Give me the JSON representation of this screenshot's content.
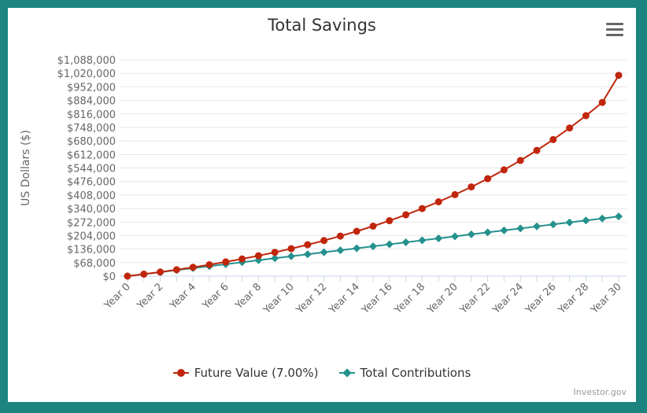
{
  "chart_data": {
    "type": "line",
    "title": "Total Savings",
    "ylabel": "US Dollars ($)",
    "xlabel": "",
    "ylim": [
      0,
      1088000
    ],
    "y_tick_values": [
      0,
      68000,
      136000,
      204000,
      272000,
      340000,
      408000,
      476000,
      544000,
      612000,
      680000,
      748000,
      816000,
      884000,
      952000,
      1020000,
      1088000
    ],
    "y_tick_labels": [
      "$0",
      "$68,000",
      "$136,000",
      "$204,000",
      "$272,000",
      "$340,000",
      "$408,000",
      "$476,000",
      "$544,000",
      "$612,000",
      "$680,000",
      "$748,000",
      "$816,000",
      "$884,000",
      "$952,000",
      "$1,020,000",
      "$1,088,000"
    ],
    "categories": [
      "Year 0",
      "Year 1",
      "Year 2",
      "Year 3",
      "Year 4",
      "Year 5",
      "Year 6",
      "Year 7",
      "Year 8",
      "Year 9",
      "Year 10",
      "Year 11",
      "Year 12",
      "Year 13",
      "Year 14",
      "Year 15",
      "Year 16",
      "Year 17",
      "Year 18",
      "Year 19",
      "Year 20",
      "Year 21",
      "Year 22",
      "Year 23",
      "Year 24",
      "Year 25",
      "Year 26",
      "Year 27",
      "Year 28",
      "Year 29",
      "Year 30"
    ],
    "x_tick_labels": [
      "Year 0",
      "Year 2",
      "Year 4",
      "Year 6",
      "Year 8",
      "Year 10",
      "Year 12",
      "Year 14",
      "Year 16",
      "Year 18",
      "Year 20",
      "Year 22",
      "Year 24",
      "Year 26",
      "Year 28",
      "Year 30"
    ],
    "grid": true,
    "legend_position": "bottom-center",
    "series": [
      {
        "name": "Future Value (7.00%)",
        "color": "#c0260b",
        "marker": "circle",
        "values": [
          0,
          10000,
          20700,
          32149,
          44399,
          57507,
          71533,
          86540,
          102598,
          119780,
          138164,
          157836,
          178885,
          201406,
          225505,
          251290,
          278881,
          308402,
          339990,
          373790,
          409955,
          448652,
          490058,
          534362,
          581767,
          632491,
          686765,
          744838,
          806977,
          873465,
          1010000
        ]
      },
      {
        "name": "Total Contributions",
        "color": "#24918d",
        "marker": "diamond",
        "values": [
          0,
          10000,
          20000,
          30000,
          40000,
          50000,
          60000,
          70000,
          80000,
          90000,
          100000,
          110000,
          120000,
          130000,
          140000,
          150000,
          160000,
          170000,
          180000,
          190000,
          200000,
          210000,
          220000,
          230000,
          240000,
          250000,
          260000,
          270000,
          280000,
          290000,
          300000
        ]
      }
    ]
  },
  "credit": "Investor.gov",
  "menu_icon": "hamburger-menu-icon"
}
